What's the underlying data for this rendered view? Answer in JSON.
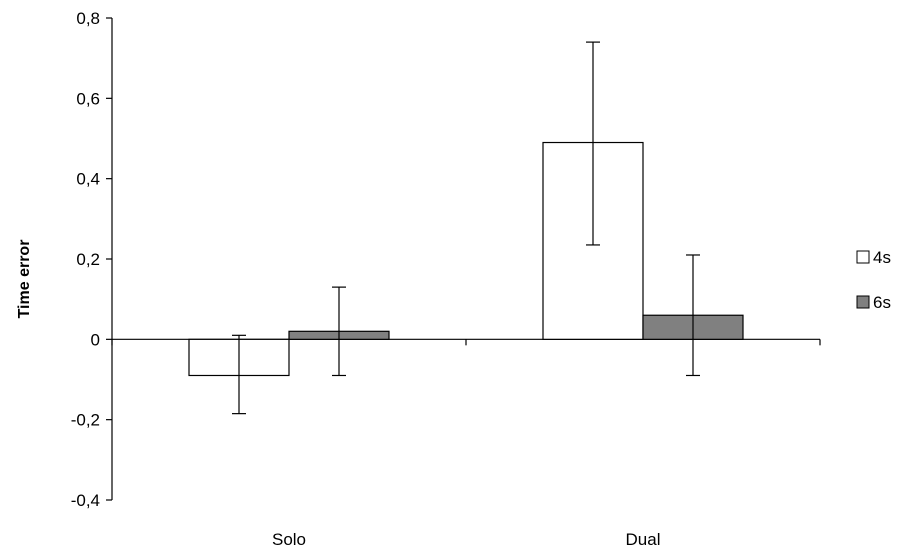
{
  "chart_data": {
    "type": "bar",
    "title": "",
    "xlabel": "",
    "ylabel": "Time error",
    "categories": [
      "Solo",
      "Dual"
    ],
    "ylim": [
      -0.4,
      0.8
    ],
    "yticks": [
      -0.4,
      -0.2,
      0,
      0.2,
      0.4,
      0.6,
      0.8
    ],
    "ytick_labels": [
      "-0,4",
      "-0,2",
      "0",
      "0,2",
      "0,4",
      "0,6",
      "0,8"
    ],
    "grid": false,
    "legend_position": "right",
    "series": [
      {
        "name": "4s",
        "color": "#ffffff",
        "values": [
          -0.09,
          0.49
        ],
        "error_low": [
          -0.185,
          0.235
        ],
        "error_high": [
          0.01,
          0.74
        ]
      },
      {
        "name": "6s",
        "color": "#808080",
        "values": [
          0.02,
          0.06
        ],
        "error_low": [
          -0.09,
          -0.09
        ],
        "error_high": [
          0.13,
          0.21
        ]
      }
    ]
  }
}
